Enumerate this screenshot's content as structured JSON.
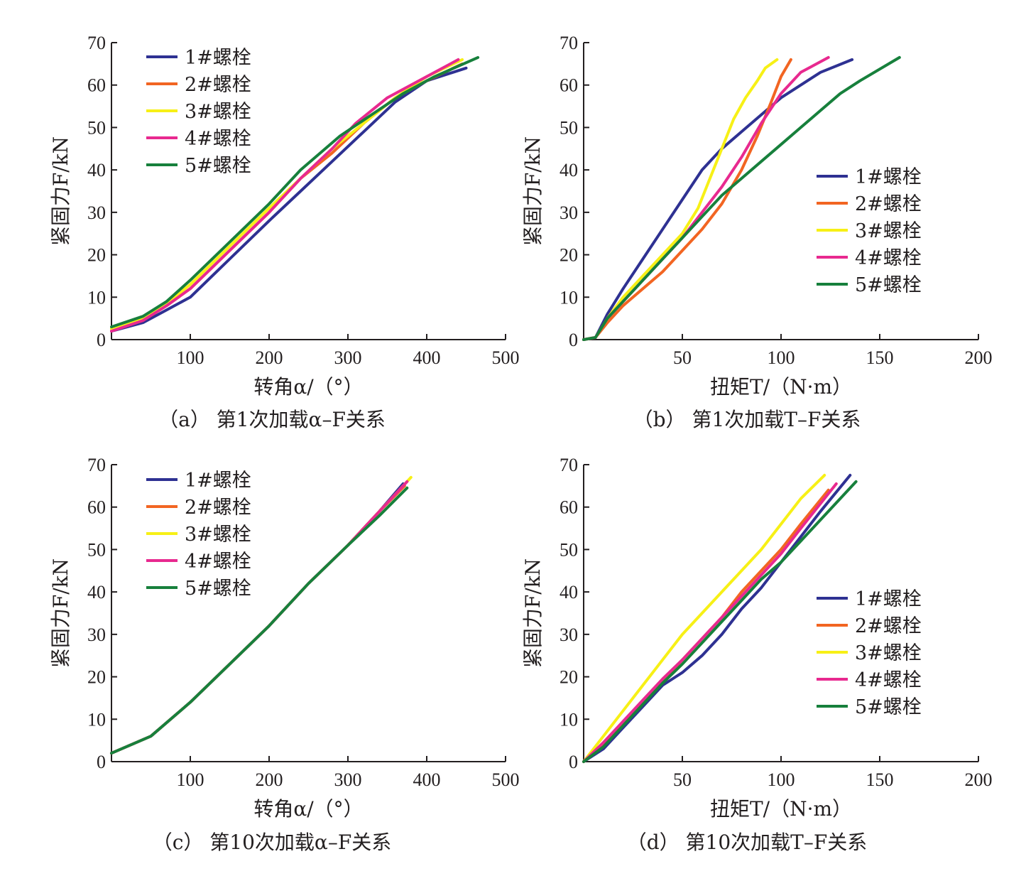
{
  "chart_data": [
    {
      "type": "line",
      "caption": "（a） 第1次加载α–F关系",
      "xlabel": "转角α/（°）",
      "ylabel": "紧固力F/kN",
      "xlim": [
        0,
        500
      ],
      "ylim": [
        0,
        70
      ],
      "xticks": [
        100,
        200,
        300,
        400,
        500
      ],
      "yticks": [
        0,
        10,
        20,
        30,
        40,
        50,
        60,
        70
      ],
      "legend_position": "top-left",
      "series": [
        {
          "name": "1#螺栓",
          "color": "#2e3192",
          "x": [
            0,
            40,
            70,
            100,
            150,
            200,
            240,
            280,
            320,
            360,
            400,
            450
          ],
          "y": [
            2,
            4,
            7,
            10,
            19,
            28,
            35,
            42,
            49,
            56,
            61,
            64
          ]
        },
        {
          "name": "2#螺栓",
          "color": "#f26522",
          "x": [
            0,
            40,
            70,
            100,
            150,
            200,
            240,
            280,
            320,
            360,
            400,
            445
          ],
          "y": [
            2.5,
            4.5,
            8,
            12,
            21,
            30,
            38,
            44,
            51,
            57,
            61,
            65
          ]
        },
        {
          "name": "3#螺栓",
          "color": "#f7f016",
          "x": [
            0,
            40,
            70,
            100,
            150,
            200,
            240,
            280,
            320,
            360,
            400,
            445
          ],
          "y": [
            2.5,
            5,
            8.5,
            13,
            22,
            31,
            38,
            45,
            51,
            57,
            62,
            66
          ]
        },
        {
          "name": "4#螺栓",
          "color": "#e8298f",
          "x": [
            0,
            40,
            70,
            100,
            150,
            200,
            240,
            280,
            310,
            350,
            400,
            440
          ],
          "y": [
            2,
            4.5,
            8,
            12,
            21,
            30,
            38,
            45,
            51,
            57,
            62,
            66
          ]
        },
        {
          "name": "5#螺栓",
          "color": "#17803c",
          "x": [
            0,
            40,
            70,
            100,
            150,
            200,
            240,
            290,
            330,
            370,
            410,
            465
          ],
          "y": [
            3,
            5.5,
            9,
            14,
            23,
            32,
            40,
            48,
            53,
            58,
            62,
            66.5
          ]
        }
      ]
    },
    {
      "type": "line",
      "caption": "（b） 第1次加载T–F关系",
      "xlabel": "扭矩T/（N·m）",
      "ylabel": "紧固力F/kN",
      "xlim": [
        0,
        200
      ],
      "ylim": [
        0,
        70
      ],
      "xticks": [
        50,
        100,
        150,
        200
      ],
      "yticks": [
        0,
        10,
        20,
        30,
        40,
        50,
        60,
        70
      ],
      "legend_position": "right",
      "series": [
        {
          "name": "1#螺栓",
          "color": "#2e3192",
          "x": [
            0,
            6,
            12,
            20,
            30,
            40,
            50,
            60,
            70,
            80,
            90,
            100,
            110,
            120,
            136
          ],
          "y": [
            0,
            0.5,
            6,
            12,
            19,
            26,
            33,
            40,
            45,
            49,
            53,
            57,
            60,
            63,
            66
          ]
        },
        {
          "name": "2#螺栓",
          "color": "#f26522",
          "x": [
            0,
            6,
            12,
            20,
            30,
            40,
            50,
            60,
            70,
            80,
            88,
            95,
            100,
            105
          ],
          "y": [
            0,
            0.5,
            4,
            8,
            12,
            16,
            21,
            26,
            32,
            40,
            48,
            56,
            62,
            66
          ]
        },
        {
          "name": "3#螺栓",
          "color": "#f7f016",
          "x": [
            0,
            6,
            12,
            20,
            30,
            40,
            50,
            58,
            64,
            70,
            76,
            82,
            88,
            92,
            98
          ],
          "y": [
            0,
            0.5,
            5,
            10,
            15,
            20,
            25,
            31,
            38,
            45,
            52,
            57,
            61,
            64,
            66
          ]
        },
        {
          "name": "4#螺栓",
          "color": "#e8298f",
          "x": [
            0,
            6,
            12,
            20,
            30,
            40,
            50,
            60,
            70,
            80,
            90,
            100,
            110,
            124
          ],
          "y": [
            0,
            0.5,
            5,
            9,
            14,
            19,
            24,
            30,
            36,
            43,
            51,
            58,
            63,
            66.5
          ]
        },
        {
          "name": "5#螺栓",
          "color": "#17803c",
          "x": [
            0,
            6,
            12,
            20,
            30,
            40,
            50,
            60,
            70,
            80,
            90,
            100,
            110,
            120,
            130,
            140,
            160
          ],
          "y": [
            0,
            0.5,
            5,
            9,
            14,
            19,
            24,
            29,
            34,
            38,
            42,
            46,
            50,
            54,
            58,
            61,
            66.5
          ]
        }
      ]
    },
    {
      "type": "line",
      "caption": "（c） 第10次加载α–F关系",
      "xlabel": "转角α/（°）",
      "ylabel": "紧固力F/kN",
      "xlim": [
        0,
        500
      ],
      "ylim": [
        0,
        70
      ],
      "xticks": [
        100,
        200,
        300,
        400,
        500
      ],
      "yticks": [
        0,
        10,
        20,
        30,
        40,
        50,
        60,
        70
      ],
      "legend_position": "top-left",
      "series": [
        {
          "name": "1#螺栓",
          "color": "#2e3192",
          "x": [
            0,
            50,
            100,
            150,
            200,
            250,
            300,
            340,
            370
          ],
          "y": [
            2,
            6,
            14,
            23,
            32,
            42,
            51,
            59,
            65.5
          ]
        },
        {
          "name": "2#螺栓",
          "color": "#f26522",
          "x": [
            0,
            50,
            100,
            150,
            200,
            250,
            300,
            340,
            372
          ],
          "y": [
            2,
            6,
            14,
            23,
            32,
            42,
            51,
            59,
            65
          ]
        },
        {
          "name": "3#螺栓",
          "color": "#f7f016",
          "x": [
            0,
            50,
            100,
            150,
            200,
            250,
            300,
            340,
            380
          ],
          "y": [
            2,
            6,
            14,
            23,
            32,
            42,
            51,
            59,
            67
          ]
        },
        {
          "name": "4#螺栓",
          "color": "#e8298f",
          "x": [
            0,
            50,
            100,
            150,
            200,
            250,
            300,
            340,
            375
          ],
          "y": [
            2,
            6,
            14,
            23,
            32,
            42,
            51,
            59,
            66
          ]
        },
        {
          "name": "5#螺栓",
          "color": "#17803c",
          "x": [
            0,
            50,
            100,
            150,
            200,
            250,
            300,
            340,
            375
          ],
          "y": [
            2,
            6,
            14,
            23,
            32,
            42,
            51,
            58,
            64.5
          ]
        }
      ]
    },
    {
      "type": "line",
      "caption": "（d） 第10次加载T–F关系",
      "xlabel": "扭矩T/（N·m）",
      "ylabel": "紧固力F/kN",
      "xlim": [
        0,
        200
      ],
      "ylim": [
        0,
        70
      ],
      "xticks": [
        50,
        100,
        150,
        200
      ],
      "yticks": [
        0,
        10,
        20,
        30,
        40,
        50,
        60,
        70
      ],
      "legend_position": "right",
      "series": [
        {
          "name": "1#螺栓",
          "color": "#2e3192",
          "x": [
            0,
            10,
            20,
            30,
            40,
            50,
            60,
            70,
            80,
            90,
            100,
            110,
            120,
            135
          ],
          "y": [
            0,
            3,
            8,
            13,
            18,
            21,
            25,
            30,
            36,
            41,
            47,
            53,
            59,
            67.5
          ]
        },
        {
          "name": "2#螺栓",
          "color": "#f26522",
          "x": [
            0,
            10,
            20,
            30,
            40,
            50,
            60,
            70,
            80,
            90,
            100,
            110,
            124
          ],
          "y": [
            0,
            4,
            9,
            14,
            19,
            24,
            29,
            34,
            40,
            45,
            50,
            56,
            64
          ]
        },
        {
          "name": "3#螺栓",
          "color": "#f7f016",
          "x": [
            0,
            10,
            20,
            30,
            40,
            50,
            60,
            70,
            80,
            90,
            100,
            110,
            122
          ],
          "y": [
            0,
            6,
            12,
            18,
            24,
            30,
            35,
            40,
            45,
            50,
            56,
            62,
            67.5
          ]
        },
        {
          "name": "4#螺栓",
          "color": "#e8298f",
          "x": [
            0,
            10,
            20,
            30,
            40,
            50,
            60,
            70,
            80,
            90,
            100,
            110,
            128
          ],
          "y": [
            0,
            4.5,
            9.5,
            14.5,
            19.5,
            24,
            29,
            34,
            39,
            44,
            49,
            55,
            65.5
          ]
        },
        {
          "name": "5#螺栓",
          "color": "#17803c",
          "x": [
            0,
            10,
            20,
            30,
            40,
            50,
            60,
            70,
            80,
            90,
            100,
            110,
            120,
            138
          ],
          "y": [
            0,
            3.5,
            8.5,
            13.5,
            18.5,
            23,
            28,
            33,
            38,
            43,
            47,
            52,
            57,
            66
          ]
        }
      ]
    }
  ]
}
